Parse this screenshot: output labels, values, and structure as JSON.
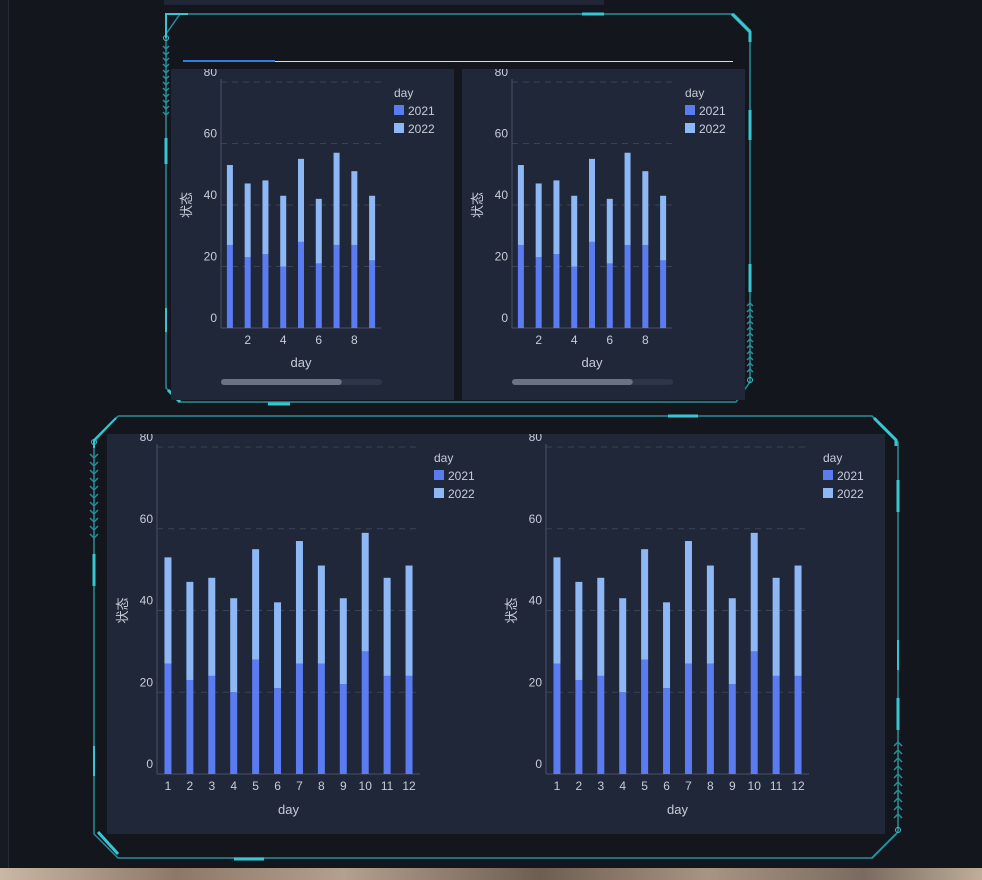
{
  "colors": {
    "frame_accent": "#38c6d0",
    "series_2021": "#5b7cf0",
    "series_2022": "#8db8f5",
    "panel_bg": "#202739",
    "axis_text": "#c7ccd8"
  },
  "top_section": {
    "tab_active": "",
    "charts": [
      {
        "type": "bar",
        "stacked": true,
        "xlabel": "day",
        "ylabel": "状态",
        "legend_title": "day",
        "categories": [
          1,
          2,
          3,
          4,
          5,
          6,
          7,
          8,
          9
        ],
        "x_tick_labels": [
          "2",
          "4",
          "6",
          "8"
        ],
        "ylim": [
          0,
          80
        ],
        "y_tick_labels": [
          "0",
          "20",
          "40",
          "60",
          "80"
        ],
        "series": [
          {
            "name": "2021",
            "values": [
              27,
              23,
              24,
              20,
              28,
              21,
              27,
              27,
              22
            ]
          },
          {
            "name": "2022",
            "values": [
              26,
              24,
              24,
              23,
              27,
              21,
              30,
              24,
              21
            ]
          }
        ],
        "scrollbar_visible_fraction": 0.75
      },
      {
        "type": "bar",
        "stacked": true,
        "xlabel": "day",
        "ylabel": "状态",
        "legend_title": "day",
        "categories": [
          1,
          2,
          3,
          4,
          5,
          6,
          7,
          8,
          9
        ],
        "x_tick_labels": [
          "2",
          "4",
          "6",
          "8"
        ],
        "ylim": [
          0,
          80
        ],
        "y_tick_labels": [
          "0",
          "20",
          "40",
          "60",
          "80"
        ],
        "series": [
          {
            "name": "2021",
            "values": [
              27,
              23,
              24,
              20,
              28,
              21,
              27,
              27,
              22
            ]
          },
          {
            "name": "2022",
            "values": [
              26,
              24,
              24,
              23,
              27,
              21,
              30,
              24,
              21
            ]
          }
        ],
        "scrollbar_visible_fraction": 0.75
      }
    ]
  },
  "bottom_section": {
    "charts": [
      {
        "type": "bar",
        "stacked": true,
        "xlabel": "day",
        "ylabel": "状态",
        "legend_title": "day",
        "categories": [
          1,
          2,
          3,
          4,
          5,
          6,
          7,
          8,
          9,
          10,
          11,
          12
        ],
        "x_tick_labels": [
          "1",
          "2",
          "3",
          "4",
          "5",
          "6",
          "7",
          "8",
          "9",
          "10",
          "11",
          "12"
        ],
        "ylim": [
          0,
          80
        ],
        "y_tick_labels": [
          "0",
          "20",
          "40",
          "60",
          "80"
        ],
        "series": [
          {
            "name": "2021",
            "values": [
              27,
              23,
              24,
              20,
              28,
              21,
              27,
              27,
              22,
              30,
              24,
              24
            ]
          },
          {
            "name": "2022",
            "values": [
              26,
              24,
              24,
              23,
              27,
              21,
              30,
              24,
              21,
              29,
              24,
              27
            ]
          }
        ]
      },
      {
        "type": "bar",
        "stacked": true,
        "xlabel": "day",
        "ylabel": "状态",
        "legend_title": "day",
        "categories": [
          1,
          2,
          3,
          4,
          5,
          6,
          7,
          8,
          9,
          10,
          11,
          12
        ],
        "x_tick_labels": [
          "1",
          "2",
          "3",
          "4",
          "5",
          "6",
          "7",
          "8",
          "9",
          "10",
          "11",
          "12"
        ],
        "ylim": [
          0,
          80
        ],
        "y_tick_labels": [
          "0",
          "20",
          "40",
          "60",
          "80"
        ],
        "series": [
          {
            "name": "2021",
            "values": [
              27,
              23,
              24,
              20,
              28,
              21,
              27,
              27,
              22,
              30,
              24,
              24
            ]
          },
          {
            "name": "2022",
            "values": [
              26,
              24,
              24,
              23,
              27,
              21,
              30,
              24,
              21,
              29,
              24,
              27
            ]
          }
        ]
      }
    ]
  }
}
